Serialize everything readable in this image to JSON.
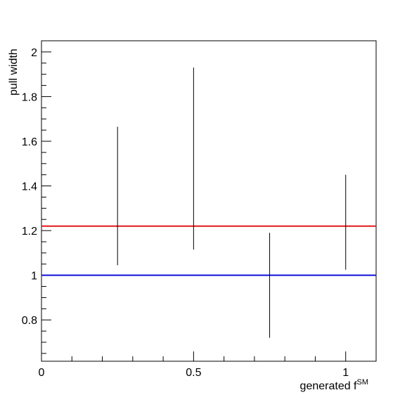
{
  "chart_data": {
    "type": "scatter",
    "xlabel": "generated f",
    "xlabel_superscript": "SM",
    "ylabel": "pull width",
    "xlim": [
      0,
      1.1
    ],
    "ylim": [
      0.615,
      2.05
    ],
    "x_ticks": [
      0,
      0.5,
      1
    ],
    "x_tick_labels": [
      "0",
      "0.5",
      "1"
    ],
    "y_ticks": [
      0.8,
      1.0,
      1.2,
      1.4,
      1.6,
      1.8,
      2.0
    ],
    "y_tick_labels": [
      "0.8",
      "1",
      "1.2",
      "1.4",
      "1.6",
      "1.8",
      "2"
    ],
    "grid": false,
    "series": [
      {
        "points": [
          {
            "x": 0.25,
            "y": 1.22,
            "y_low": 1.045,
            "y_high": 1.665
          },
          {
            "x": 0.5,
            "y": 1.22,
            "y_low": 1.115,
            "y_high": 1.93
          },
          {
            "x": 0.75,
            "y": 1.0,
            "y_low": 0.72,
            "y_high": 1.19
          },
          {
            "x": 1.0,
            "y": 1.22,
            "y_low": 1.025,
            "y_high": 1.45
          }
        ],
        "color": "#000000"
      }
    ],
    "reference_lines": [
      {
        "y": 1.22,
        "color": "#e0191c"
      },
      {
        "y": 1.0,
        "color": "#1010d8"
      }
    ]
  }
}
